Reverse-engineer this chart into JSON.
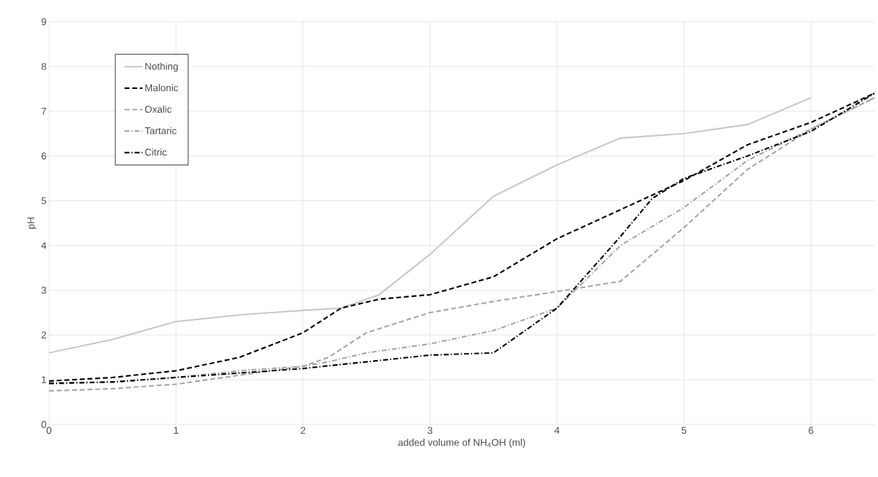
{
  "chart_data": {
    "type": "line",
    "xlabel": "added volume of NH$_{4}$OH (ml)",
    "ylabel": "pH",
    "xlim": [
      0,
      6.5
    ],
    "ylim": [
      0,
      9
    ],
    "xticks": [
      0,
      1,
      2,
      3,
      4,
      5,
      6
    ],
    "yticks": [
      0,
      1,
      2,
      3,
      4,
      5,
      6,
      7,
      8,
      9
    ],
    "grid": true,
    "legend": "top left",
    "marker": "none",
    "series": [
      {
        "name": "Nothing",
        "color": "#c8c8c8",
        "line_style": "solid",
        "x": [
          0,
          0.5,
          1,
          1.5,
          2,
          2.3,
          2.6,
          3,
          3.5,
          4,
          4.5,
          5,
          5.5,
          6
        ],
        "values": [
          1.6,
          1.9,
          2.3,
          2.45,
          2.55,
          2.6,
          2.9,
          3.8,
          5.1,
          5.8,
          6.4,
          6.5,
          6.7,
          7.3
        ]
      },
      {
        "name": "Malonic",
        "color": "#000000",
        "line_style": "dashed",
        "x": [
          0,
          0.5,
          1,
          1.5,
          2,
          2.3,
          2.6,
          3,
          3.5,
          4,
          4.5,
          5,
          5.5,
          6,
          6.5
        ],
        "values": [
          0.97,
          1.05,
          1.2,
          1.5,
          2.05,
          2.6,
          2.8,
          2.9,
          3.3,
          4.15,
          4.8,
          5.45,
          6.25,
          6.75,
          7.4
        ]
      },
      {
        "name": "Oxalic",
        "color": "#a6a6a6",
        "line_style": "dashed",
        "x": [
          0,
          0.5,
          1,
          1.5,
          2,
          2.2,
          2.5,
          3,
          3.5,
          4,
          4.5,
          5,
          5.5,
          6,
          6.5
        ],
        "values": [
          0.75,
          0.8,
          0.9,
          1.1,
          1.3,
          1.5,
          2.05,
          2.5,
          2.75,
          2.97,
          3.2,
          4.4,
          5.7,
          6.6,
          7.3
        ]
      },
      {
        "name": "Tartaric",
        "color": "#a6a6a6",
        "line_style": "dashdot",
        "x": [
          0,
          0.5,
          1,
          1.5,
          2,
          2.2,
          2.5,
          3,
          3.5,
          4,
          4.5,
          5,
          5.5,
          6,
          6.5
        ],
        "values": [
          0.9,
          0.95,
          1.05,
          1.2,
          1.3,
          1.4,
          1.6,
          1.8,
          2.1,
          2.6,
          4.0,
          4.85,
          5.9,
          6.6,
          7.3
        ]
      },
      {
        "name": "Citric",
        "color": "#000000",
        "line_style": "dashdot",
        "x": [
          0,
          0.5,
          1,
          1.5,
          2,
          2.5,
          3,
          3.5,
          4,
          4.5,
          4.75,
          5,
          5.5,
          6,
          6.5
        ],
        "values": [
          0.92,
          0.95,
          1.05,
          1.15,
          1.25,
          1.4,
          1.55,
          1.6,
          2.6,
          4.2,
          5.05,
          5.5,
          6.0,
          6.55,
          7.4
        ]
      }
    ]
  }
}
